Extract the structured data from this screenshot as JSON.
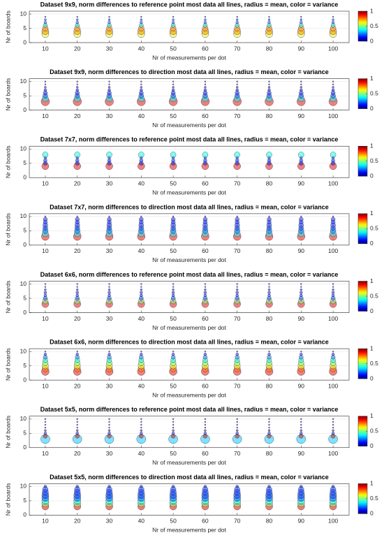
{
  "chart_data": [
    {
      "type": "bubble",
      "title": "Dataset 9x9, norm differences to reference point most data all lines, radius = mean, color = variance",
      "xlabel": "Nr of measurements per dot",
      "ylabel": "Nr of boards",
      "x": [
        10,
        20,
        30,
        40,
        50,
        60,
        70,
        80,
        90,
        100
      ],
      "xlim": [
        5,
        105
      ],
      "xticks": [
        10,
        20,
        30,
        40,
        50,
        60,
        70,
        80,
        90,
        100
      ],
      "ylim": [
        0,
        11
      ],
      "yticks": [
        0,
        5,
        10
      ],
      "clim": [
        0,
        1
      ],
      "cticks": [
        0,
        0.5,
        1
      ],
      "grid": true,
      "levels": [
        {
          "y": 3,
          "mean": 0.5,
          "variance": 0.6
        },
        {
          "y": 4,
          "mean": 0.5,
          "variance": 0.75
        },
        {
          "y": 5,
          "mean": 0.4,
          "variance": 0.72
        },
        {
          "y": 6,
          "mean": 0.3,
          "variance": 0.35
        },
        {
          "y": 7,
          "mean": 0.2,
          "variance": 0.2
        },
        {
          "y": 8,
          "mean": 0.15,
          "variance": 0.15
        },
        {
          "y": 9,
          "mean": 0.1,
          "variance": 0.1
        }
      ]
    },
    {
      "type": "bubble",
      "title": "Dataset 9x9, norm differences to direction most data all lines, radius = mean, color = variance",
      "xlabel": "Nr of measurements per dot",
      "ylabel": "Nr of boards",
      "x": [
        10,
        20,
        30,
        40,
        50,
        60,
        70,
        80,
        90,
        100
      ],
      "xlim": [
        5,
        105
      ],
      "xticks": [
        10,
        20,
        30,
        40,
        50,
        60,
        70,
        80,
        90,
        100
      ],
      "ylim": [
        0,
        11
      ],
      "yticks": [
        0,
        5,
        10
      ],
      "clim": [
        0,
        1
      ],
      "cticks": [
        0,
        0.5,
        1
      ],
      "grid": true,
      "levels": [
        {
          "y": 3,
          "mean": 0.6,
          "variance": 0.9
        },
        {
          "y": 4,
          "mean": 0.45,
          "variance": 0.38
        },
        {
          "y": 5,
          "mean": 0.35,
          "variance": 0.2
        },
        {
          "y": 6,
          "mean": 0.3,
          "variance": 0.15
        },
        {
          "y": 7,
          "mean": 0.2,
          "variance": 0.12
        },
        {
          "y": 8,
          "mean": 0.15,
          "variance": 0.1
        },
        {
          "y": 9,
          "mean": 0.1,
          "variance": 0.1
        },
        {
          "y": 10,
          "mean": 0.1,
          "variance": 0.1
        }
      ]
    },
    {
      "type": "bubble",
      "title": "Dataset 7x7, norm differences to reference point most data all lines, radius = mean, color = variance",
      "xlabel": "Nr of measurements per dot",
      "ylabel": "Nr of boards",
      "x": [
        10,
        20,
        30,
        40,
        50,
        60,
        70,
        80,
        90,
        100
      ],
      "xlim": [
        5,
        105
      ],
      "xticks": [
        10,
        20,
        30,
        40,
        50,
        60,
        70,
        80,
        90,
        100
      ],
      "ylim": [
        0,
        11
      ],
      "yticks": [
        0,
        5,
        10
      ],
      "clim": [
        0,
        1
      ],
      "cticks": [
        0,
        0.5,
        1
      ],
      "grid": true,
      "levels": [
        {
          "y": 4,
          "mean": 0.5,
          "variance": 0.9
        },
        {
          "y": 5,
          "mean": 0.3,
          "variance": 0.15
        },
        {
          "y": 6,
          "mean": 0.25,
          "variance": 0.15
        },
        {
          "y": 7,
          "mean": 0.2,
          "variance": 0.15
        },
        {
          "y": 8,
          "mean": 0.4,
          "variance": 0.38
        }
      ]
    },
    {
      "type": "bubble",
      "title": "Dataset 7x7, norm differences to direction most data all lines, radius = mean, color = variance",
      "xlabel": "Nr of measurements per dot",
      "ylabel": "Nr of boards",
      "x": [
        10,
        20,
        30,
        40,
        50,
        60,
        70,
        80,
        90,
        100
      ],
      "xlim": [
        5,
        105
      ],
      "xticks": [
        10,
        20,
        30,
        40,
        50,
        60,
        70,
        80,
        90,
        100
      ],
      "ylim": [
        0,
        11
      ],
      "yticks": [
        0,
        5,
        10
      ],
      "clim": [
        0,
        1
      ],
      "cticks": [
        0,
        0.5,
        1
      ],
      "grid": true,
      "levels": [
        {
          "y": 3,
          "mean": 0.55,
          "variance": 0.9
        },
        {
          "y": 4,
          "mean": 0.45,
          "variance": 0.38
        },
        {
          "y": 5,
          "mean": 0.4,
          "variance": 0.22
        },
        {
          "y": 6,
          "mean": 0.35,
          "variance": 0.18
        },
        {
          "y": 7,
          "mean": 0.35,
          "variance": 0.18
        },
        {
          "y": 8,
          "mean": 0.3,
          "variance": 0.15
        },
        {
          "y": 9,
          "mean": 0.3,
          "variance": 0.15
        },
        {
          "y": 10,
          "mean": 0.1,
          "variance": 0.1
        }
      ]
    },
    {
      "type": "bubble",
      "title": "Dataset 6x6, norm differences to reference point most data all lines, radius = mean, color = variance",
      "xlabel": "Nr of measurements per dot",
      "ylabel": "Nr of boards",
      "x": [
        10,
        20,
        30,
        40,
        50,
        60,
        70,
        80,
        90,
        100
      ],
      "xlim": [
        5,
        105
      ],
      "xticks": [
        10,
        20,
        30,
        40,
        50,
        60,
        70,
        80,
        90,
        100
      ],
      "ylim": [
        0,
        11
      ],
      "yticks": [
        0,
        5,
        10
      ],
      "clim": [
        0,
        1
      ],
      "cticks": [
        0,
        0.5,
        1
      ],
      "grid": true,
      "levels": [
        {
          "y": 3,
          "mean": 0.5,
          "variance": 0.9
        },
        {
          "y": 4,
          "mean": 0.4,
          "variance": 0.5
        },
        {
          "y": 5,
          "mean": 0.3,
          "variance": 0.2
        },
        {
          "y": 6,
          "mean": 0.2,
          "variance": 0.15
        },
        {
          "y": 7,
          "mean": 0.2,
          "variance": 0.15
        },
        {
          "y": 8,
          "mean": 0.15,
          "variance": 0.12
        },
        {
          "y": 9,
          "mean": 0.1,
          "variance": 0.1
        },
        {
          "y": 10,
          "mean": 0.1,
          "variance": 0.1
        }
      ]
    },
    {
      "type": "bubble",
      "title": "Dataset 6x6, norm differences to direction most data all lines, radius = mean, color = variance",
      "xlabel": "Nr of measurements per dot",
      "ylabel": "Nr of boards",
      "x": [
        10,
        20,
        30,
        40,
        50,
        60,
        70,
        80,
        90,
        100
      ],
      "xlim": [
        5,
        105
      ],
      "xticks": [
        10,
        20,
        30,
        40,
        50,
        60,
        70,
        80,
        90,
        100
      ],
      "ylim": [
        0,
        11
      ],
      "yticks": [
        0,
        5,
        10
      ],
      "clim": [
        0,
        1
      ],
      "cticks": [
        0,
        0.5,
        1
      ],
      "grid": true,
      "levels": [
        {
          "y": 3,
          "mean": 0.55,
          "variance": 0.9
        },
        {
          "y": 4,
          "mean": 0.45,
          "variance": 0.75
        },
        {
          "y": 5,
          "mean": 0.45,
          "variance": 0.6
        },
        {
          "y": 6,
          "mean": 0.4,
          "variance": 0.5
        },
        {
          "y": 7,
          "mean": 0.35,
          "variance": 0.4
        },
        {
          "y": 8,
          "mean": 0.3,
          "variance": 0.25
        },
        {
          "y": 9,
          "mean": 0.2,
          "variance": 0.15
        },
        {
          "y": 10,
          "mean": 0.1,
          "variance": 0.1
        }
      ]
    },
    {
      "type": "bubble",
      "title": "Dataset 5x5, norm differences to reference point most data all lines, radius = mean, color = variance",
      "xlabel": "Nr of measurements per dot",
      "ylabel": "Nr of boards",
      "x": [
        10,
        20,
        30,
        40,
        50,
        60,
        70,
        80,
        90,
        100
      ],
      "xlim": [
        5,
        105
      ],
      "xticks": [
        10,
        20,
        30,
        40,
        50,
        60,
        70,
        80,
        90,
        100
      ],
      "ylim": [
        0,
        11
      ],
      "yticks": [
        0,
        5,
        10
      ],
      "clim": [
        0,
        1
      ],
      "cticks": [
        0,
        0.5,
        1
      ],
      "grid": true,
      "levels": [
        {
          "y": 3,
          "mean": 0.65,
          "variance": 0.32
        },
        {
          "y": 4,
          "mean": 0.3,
          "variance": 0.9
        },
        {
          "y": 5,
          "mean": 0.2,
          "variance": 0.15
        },
        {
          "y": 6,
          "mean": 0.15,
          "variance": 0.12
        },
        {
          "y": 7,
          "mean": 0.1,
          "variance": 0.1
        },
        {
          "y": 8,
          "mean": 0.1,
          "variance": 0.1
        },
        {
          "y": 9,
          "mean": 0.1,
          "variance": 0.1
        },
        {
          "y": 10,
          "mean": 0.1,
          "variance": 0.1
        }
      ]
    },
    {
      "type": "bubble",
      "title": "Dataset 5x5, norm differences to direction most data all lines, radius = mean, color = variance",
      "xlabel": "Nr of measurements per dot",
      "ylabel": "Nr of boards",
      "x": [
        10,
        20,
        30,
        40,
        50,
        60,
        70,
        80,
        90,
        100
      ],
      "xlim": [
        5,
        105
      ],
      "xticks": [
        10,
        20,
        30,
        40,
        50,
        60,
        70,
        80,
        90,
        100
      ],
      "ylim": [
        0,
        11
      ],
      "yticks": [
        0,
        5,
        10
      ],
      "clim": [
        0,
        1
      ],
      "cticks": [
        0,
        0.5,
        1
      ],
      "grid": true,
      "levels": [
        {
          "y": 3,
          "mean": 0.5,
          "variance": 0.9
        },
        {
          "y": 4,
          "mean": 0.5,
          "variance": 0.5
        },
        {
          "y": 5,
          "mean": 0.5,
          "variance": 0.38
        },
        {
          "y": 6,
          "mean": 0.5,
          "variance": 0.2
        },
        {
          "y": 7,
          "mean": 0.5,
          "variance": 0.18
        },
        {
          "y": 8,
          "mean": 0.45,
          "variance": 0.18
        },
        {
          "y": 9,
          "mean": 0.4,
          "variance": 0.18
        },
        {
          "y": 10,
          "mean": 0.2,
          "variance": 0.15
        }
      ]
    }
  ]
}
